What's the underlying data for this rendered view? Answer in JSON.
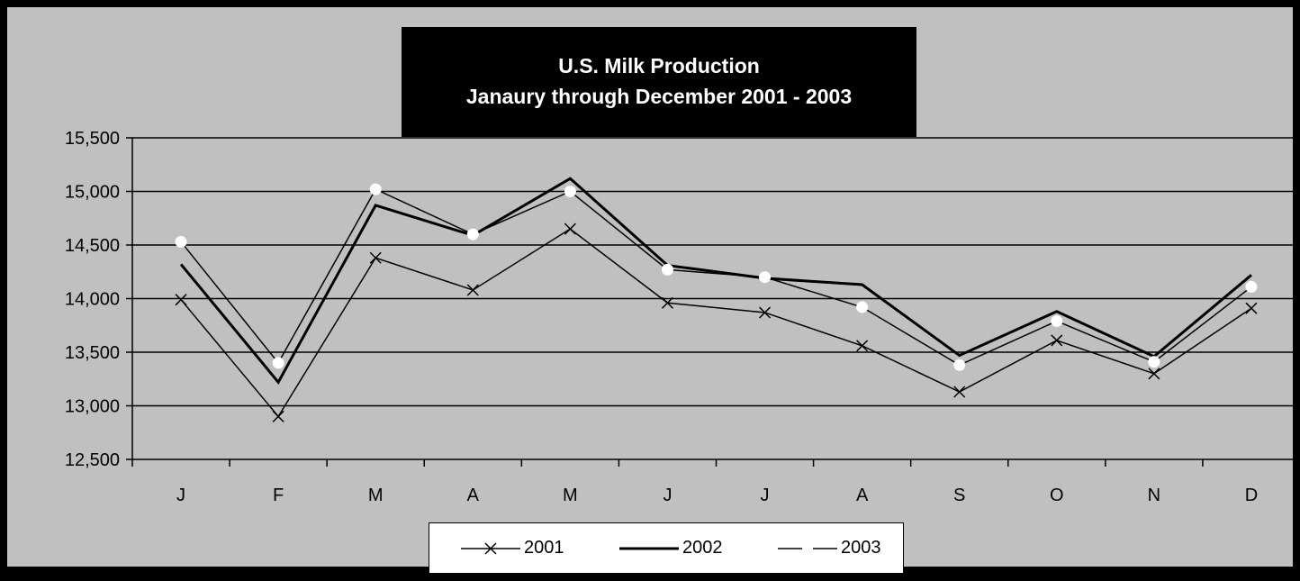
{
  "chart_data": {
    "type": "line",
    "title": [
      "U.S. Milk Production",
      "Janaury through December 2001 - 2003"
    ],
    "categories": [
      "J",
      "F",
      "M",
      "A",
      "M",
      "J",
      "J",
      "A",
      "S",
      "O",
      "N",
      "D"
    ],
    "ylim": [
      12500,
      15500
    ],
    "ytick_step": 500,
    "ytick_labels": [
      "12,500",
      "13,000",
      "13,500",
      "14,000",
      "14,500",
      "15,000",
      "15,500"
    ],
    "grid": true,
    "legend_placement": "bottom",
    "series": [
      {
        "name": "2001",
        "marker": "x",
        "line_width": 1.5,
        "color": "#000000",
        "values": [
          13990,
          12900,
          14380,
          14080,
          14650,
          13960,
          13870,
          13560,
          13130,
          13610,
          13300,
          13910
        ]
      },
      {
        "name": "2002",
        "marker": "none",
        "line_width": 3,
        "color": "#000000",
        "values": [
          14320,
          13220,
          14870,
          14590,
          15120,
          14310,
          14190,
          14130,
          13470,
          13880,
          13460,
          14220
        ]
      },
      {
        "name": "2003",
        "marker": "circle-white",
        "line_width": 1.5,
        "color": "#000000",
        "values": [
          14530,
          13400,
          15020,
          14600,
          15000,
          14270,
          14200,
          13920,
          13380,
          13790,
          13410,
          14110
        ]
      }
    ]
  },
  "colors": {
    "plot_background": "#c0c0c0",
    "frame": "#000000",
    "line": "#000000",
    "marker_fill": "#ffffff"
  }
}
